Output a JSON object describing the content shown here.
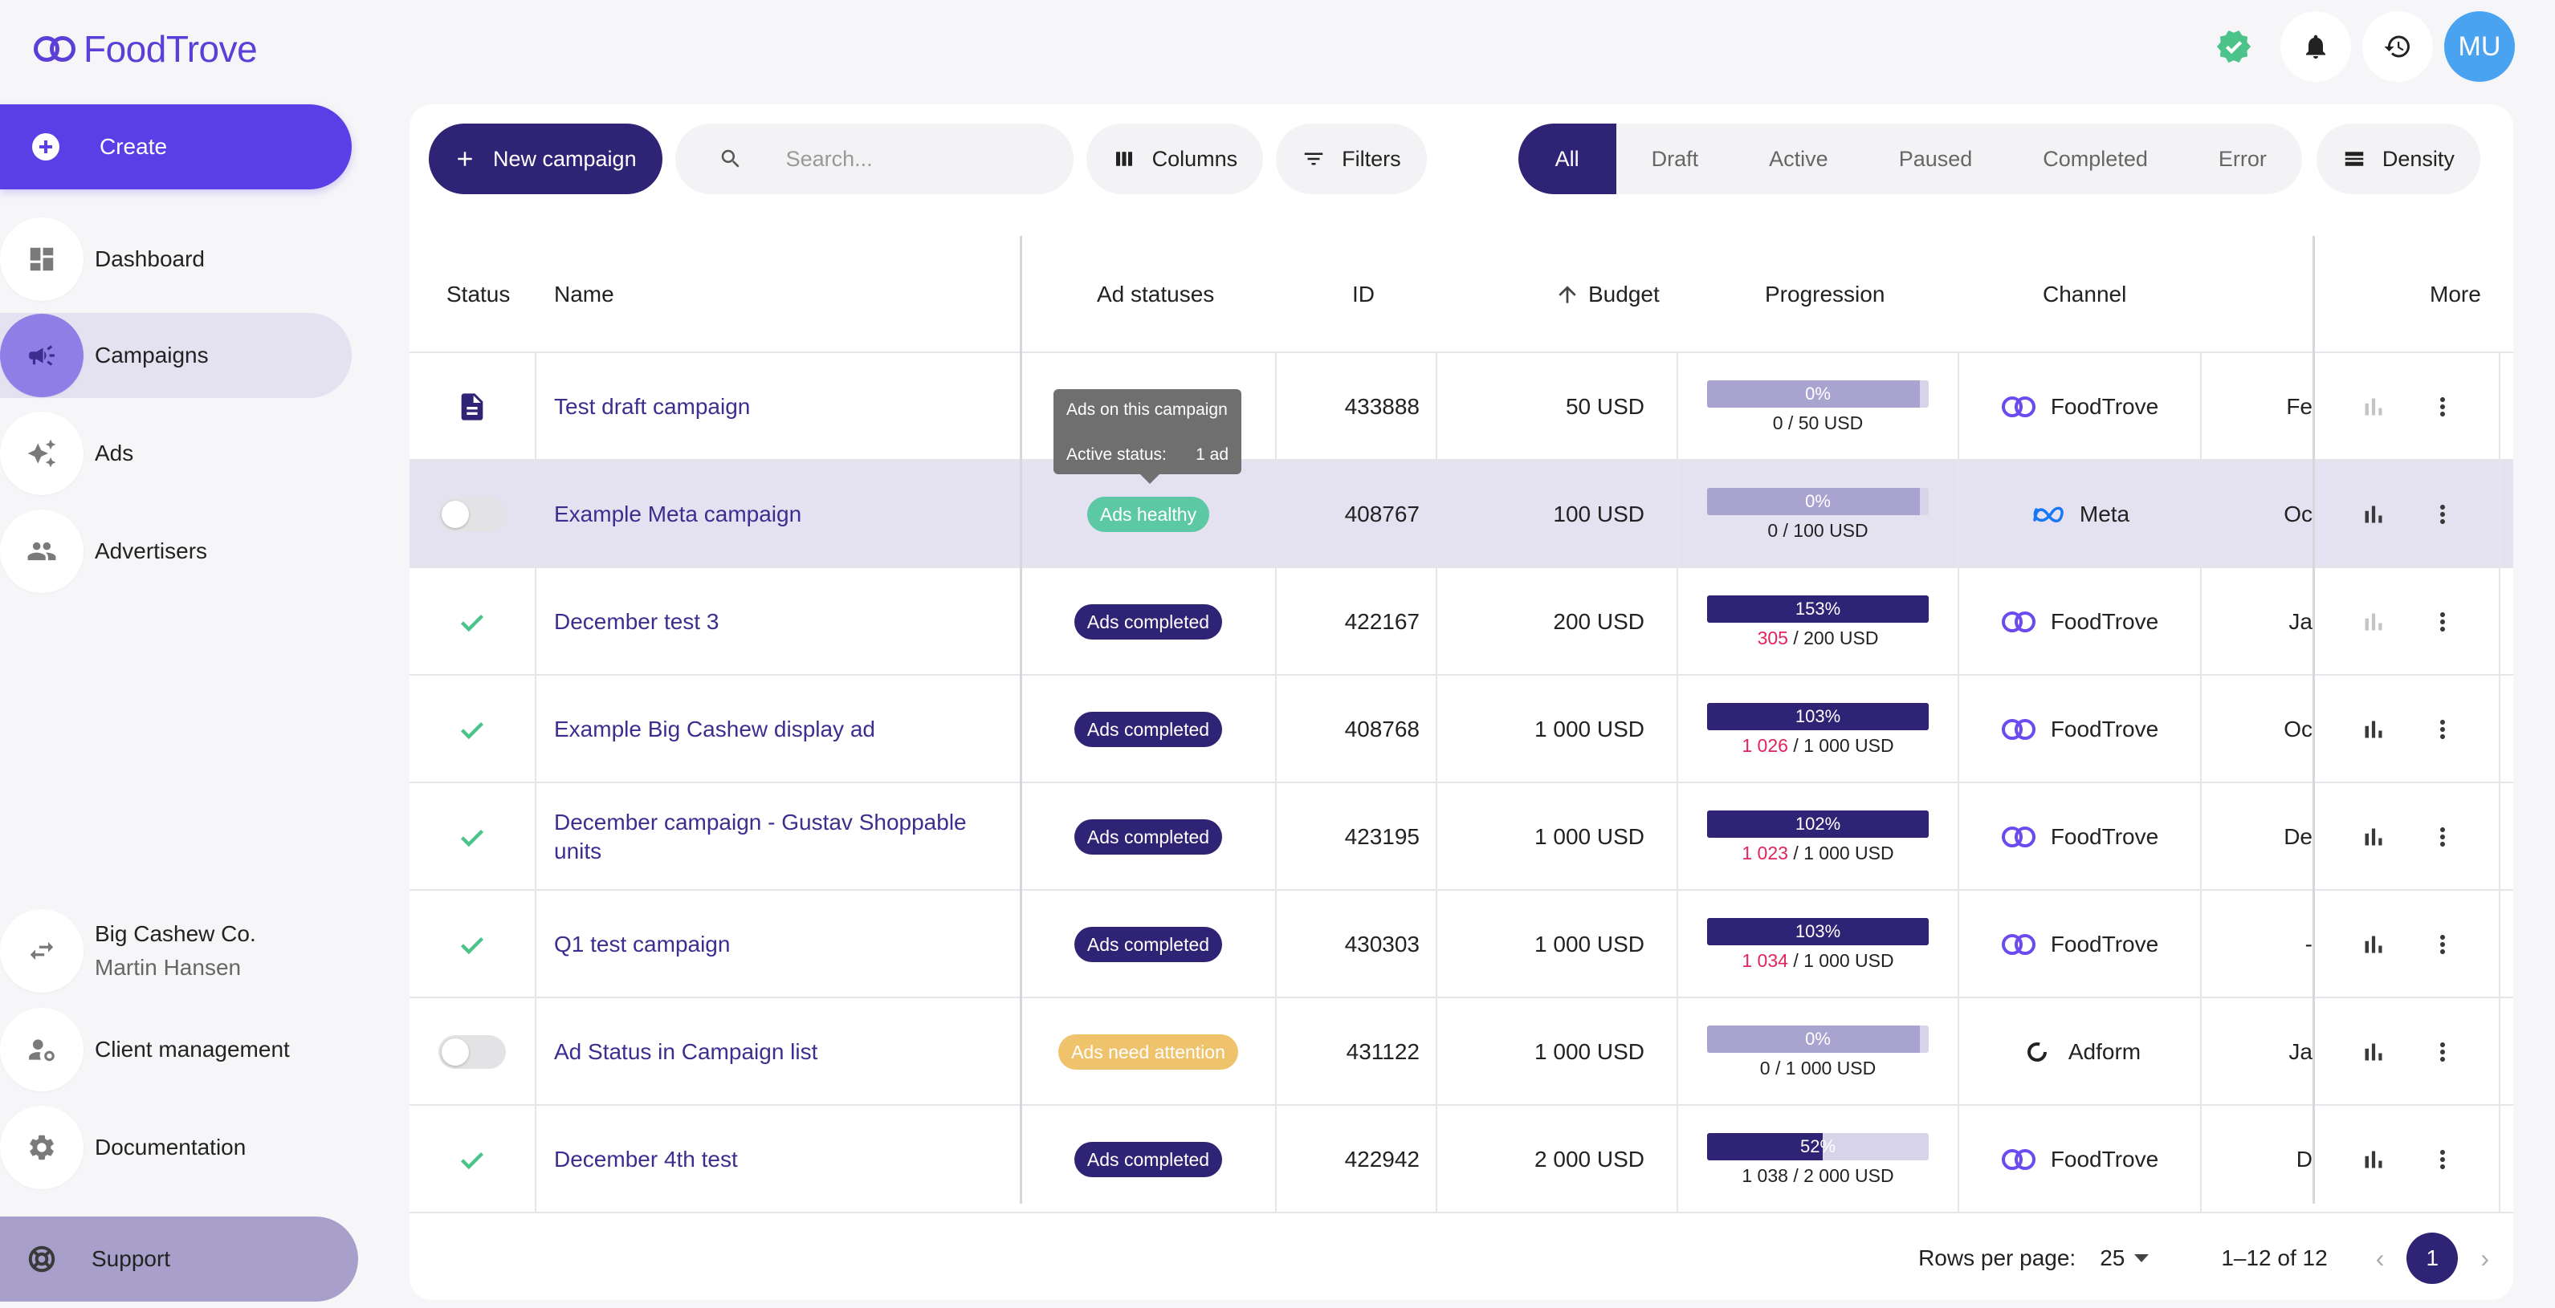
{
  "app": {
    "logo_text": "FoodTrove"
  },
  "sidebar": {
    "create_label": "Create",
    "items": [
      {
        "label": "Dashboard"
      },
      {
        "label": "Campaigns"
      },
      {
        "label": "Ads"
      },
      {
        "label": "Advertisers"
      }
    ],
    "account": {
      "company": "Big Cashew Co.",
      "user": "Martin Hansen"
    },
    "client_management": "Client management",
    "documentation": "Documentation",
    "support": "Support"
  },
  "header": {
    "avatar_initials": "MU"
  },
  "toolbar": {
    "new_campaign": "New campaign",
    "search_placeholder": "Search...",
    "columns": "Columns",
    "filters": "Filters",
    "density": "Density",
    "status_tabs": [
      "All",
      "Draft",
      "Active",
      "Paused",
      "Completed",
      "Error"
    ],
    "active_tab": "All"
  },
  "table": {
    "headers": {
      "status": "Status",
      "name": "Name",
      "ad_statuses": "Ad statuses",
      "id": "ID",
      "budget": "Budget",
      "progression": "Progression",
      "channel": "Channel",
      "more": "More"
    },
    "sort": {
      "column": "Budget",
      "direction": "ascending"
    },
    "rows": [
      {
        "status": "draft",
        "name": "Test draft campaign",
        "ad_status": "",
        "id": "433888",
        "budget": "50 USD",
        "progress_pct": 0,
        "progress_label": "0%",
        "spent": "0",
        "spent_over": false,
        "total": "/ 50 USD",
        "channel": "FoodTrove",
        "date": "Fe",
        "stats_enabled": false
      },
      {
        "status": "toggle-off",
        "name": "Example Meta campaign",
        "ad_status": "Ads healthy",
        "ad_status_type": "healthy",
        "id": "408767",
        "budget": "100 USD",
        "progress_pct": 0,
        "progress_label": "0%",
        "spent": "0",
        "spent_over": false,
        "total": "/ 100 USD",
        "channel": "Meta",
        "date": "Oc",
        "stats_enabled": true
      },
      {
        "status": "completed",
        "name": "December test 3",
        "ad_status": "Ads completed",
        "ad_status_type": "completed",
        "id": "422167",
        "budget": "200 USD",
        "progress_pct": 153,
        "progress_label": "153%",
        "spent": "305",
        "spent_over": true,
        "total": "/ 200 USD",
        "channel": "FoodTrove",
        "date": "Ja",
        "stats_enabled": false
      },
      {
        "status": "completed",
        "name": "Example Big Cashew display ad",
        "ad_status": "Ads completed",
        "ad_status_type": "completed",
        "id": "408768",
        "budget": "1 000 USD",
        "progress_pct": 103,
        "progress_label": "103%",
        "spent": "1 026",
        "spent_over": true,
        "total": "/ 1 000 USD",
        "channel": "FoodTrove",
        "date": "Oc",
        "stats_enabled": true
      },
      {
        "status": "completed",
        "name": "December campaign - Gustav Shoppable units",
        "ad_status": "Ads completed",
        "ad_status_type": "completed",
        "id": "423195",
        "budget": "1 000 USD",
        "progress_pct": 102,
        "progress_label": "102%",
        "spent": "1 023",
        "spent_over": true,
        "total": "/ 1 000 USD",
        "channel": "FoodTrove",
        "date": "De",
        "stats_enabled": true
      },
      {
        "status": "completed",
        "name": "Q1 test campaign",
        "ad_status": "Ads completed",
        "ad_status_type": "completed",
        "id": "430303",
        "budget": "1 000 USD",
        "progress_pct": 103,
        "progress_label": "103%",
        "spent": "1 034",
        "spent_over": true,
        "total": "/ 1 000 USD",
        "channel": "FoodTrove",
        "date": "-",
        "stats_enabled": true
      },
      {
        "status": "toggle-off",
        "name": "Ad Status in Campaign list",
        "ad_status": "Ads need attention",
        "ad_status_type": "attention",
        "id": "431122",
        "budget": "1 000 USD",
        "progress_pct": 0,
        "progress_label": "0%",
        "spent": "0",
        "spent_over": false,
        "total": "/ 1 000 USD",
        "channel": "Adform",
        "date": "Ja",
        "stats_enabled": true
      },
      {
        "status": "completed",
        "name": "December 4th test",
        "ad_status": "Ads completed",
        "ad_status_type": "completed",
        "id": "422942",
        "budget": "2 000 USD",
        "progress_pct": 52,
        "progress_label": "52%",
        "spent": "1 038",
        "spent_over": false,
        "total": "/ 2 000 USD",
        "channel": "FoodTrove",
        "date": "D",
        "stats_enabled": true
      }
    ]
  },
  "tooltip": {
    "title": "Ads on this campaign",
    "label": "Active status:",
    "value": "1 ad"
  },
  "footer": {
    "rows_per_page_label": "Rows per page:",
    "rows_per_page": "25",
    "range": "1–12 of 12",
    "page": "1"
  },
  "colors": {
    "brand": "#5b3fe6",
    "primary_dark": "#2e2375",
    "healthy": "#5cc8a4",
    "attention": "#efc26c",
    "over_budget": "#e0245e",
    "avatar": "#4aa3f0"
  },
  "icons": {
    "dashboard": "dashboard-icon",
    "campaigns": "megaphone-icon",
    "ads": "sparkles-icon",
    "advertisers": "people-icon",
    "switch_account": "swap-icon",
    "client_management": "user-gear-icon",
    "documentation": "gear-icon",
    "support": "lifebuoy-icon"
  }
}
